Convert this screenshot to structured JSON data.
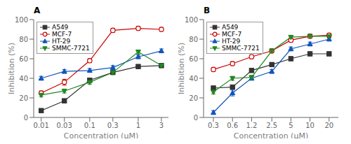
{
  "chart_data": [
    {
      "type": "line",
      "title": "A",
      "x_label": "Concentration (μM)",
      "y_label": "Inhibition (%)",
      "x": [
        0.01,
        0.03,
        0.1,
        0.3,
        1,
        3
      ],
      "xlim": [
        0.007,
        4.2
      ],
      "xticks": [
        0.01,
        0.03,
        0.1,
        0.3,
        1,
        3
      ],
      "ylim": [
        0,
        100
      ],
      "yticks": [
        0,
        20,
        40,
        60,
        80,
        100
      ],
      "log": "x",
      "grid": false,
      "legend": "upper left",
      "series": [
        {
          "name": "A549",
          "color": "#333333",
          "marker": "square",
          "line_style": "solid",
          "values": [
            7,
            17,
            38,
            46,
            52,
            53
          ],
          "yerr": [
            1.5,
            2,
            2,
            2,
            2,
            2
          ]
        },
        {
          "name": "MCF-7",
          "color": "#cc0000",
          "marker": "open-circle",
          "line_style": "solid",
          "values": [
            25,
            36,
            58,
            89,
            91,
            90
          ],
          "yerr": [
            2,
            3,
            2,
            2,
            2,
            2
          ]
        },
        {
          "name": "HT-29",
          "color": "#1155bb",
          "marker": "triangle",
          "line_style": "solid",
          "values": [
            40,
            47,
            48,
            51,
            62,
            68
          ],
          "yerr": [
            2,
            2,
            2,
            2,
            2,
            2
          ]
        },
        {
          "name": "SMMC-7721",
          "color": "#228822",
          "marker": "triangle-down",
          "line_style": "solid",
          "values": [
            23,
            27,
            36,
            46,
            67,
            53
          ],
          "yerr": [
            2,
            2,
            2,
            2,
            2,
            2
          ]
        }
      ]
    },
    {
      "type": "line",
      "title": "B",
      "x_label": "Concentration (μM)",
      "y_label": "Inhibition (%)",
      "x": [
        0.3,
        0.6,
        1.2,
        2.5,
        5,
        10,
        20
      ],
      "xlim": [
        0.21,
        28
      ],
      "xticks": [
        0.3,
        0.6,
        1.2,
        2.5,
        5,
        10,
        20
      ],
      "ylim": [
        0,
        100
      ],
      "yticks": [
        0,
        20,
        40,
        60,
        80,
        100
      ],
      "log": "x",
      "grid": false,
      "legend": "upper left",
      "series": [
        {
          "name": "A549",
          "color": "#333333",
          "marker": "square",
          "line_style": "solid",
          "values": [
            30,
            31,
            48,
            54,
            60,
            65,
            65
          ],
          "yerr": [
            2,
            2,
            2,
            2,
            2,
            2,
            2
          ]
        },
        {
          "name": "MCF-7",
          "color": "#cc0000",
          "marker": "open-circle",
          "line_style": "solid",
          "values": [
            49,
            55,
            62,
            68,
            79,
            83,
            84
          ],
          "yerr": [
            2,
            2,
            2,
            2,
            2,
            2,
            2
          ]
        },
        {
          "name": "HT-29",
          "color": "#1155bb",
          "marker": "triangle",
          "line_style": "solid",
          "values": [
            5,
            25,
            40,
            47,
            70,
            75,
            80
          ],
          "yerr": [
            2,
            3,
            2,
            2,
            2,
            2,
            2
          ]
        },
        {
          "name": "SMMC-7721",
          "color": "#228822",
          "marker": "triangle-down",
          "line_style": "solid",
          "values": [
            26,
            40,
            41,
            68,
            82,
            83,
            83
          ],
          "yerr": [
            2,
            2,
            2,
            2,
            2,
            2,
            2
          ]
        }
      ]
    }
  ]
}
